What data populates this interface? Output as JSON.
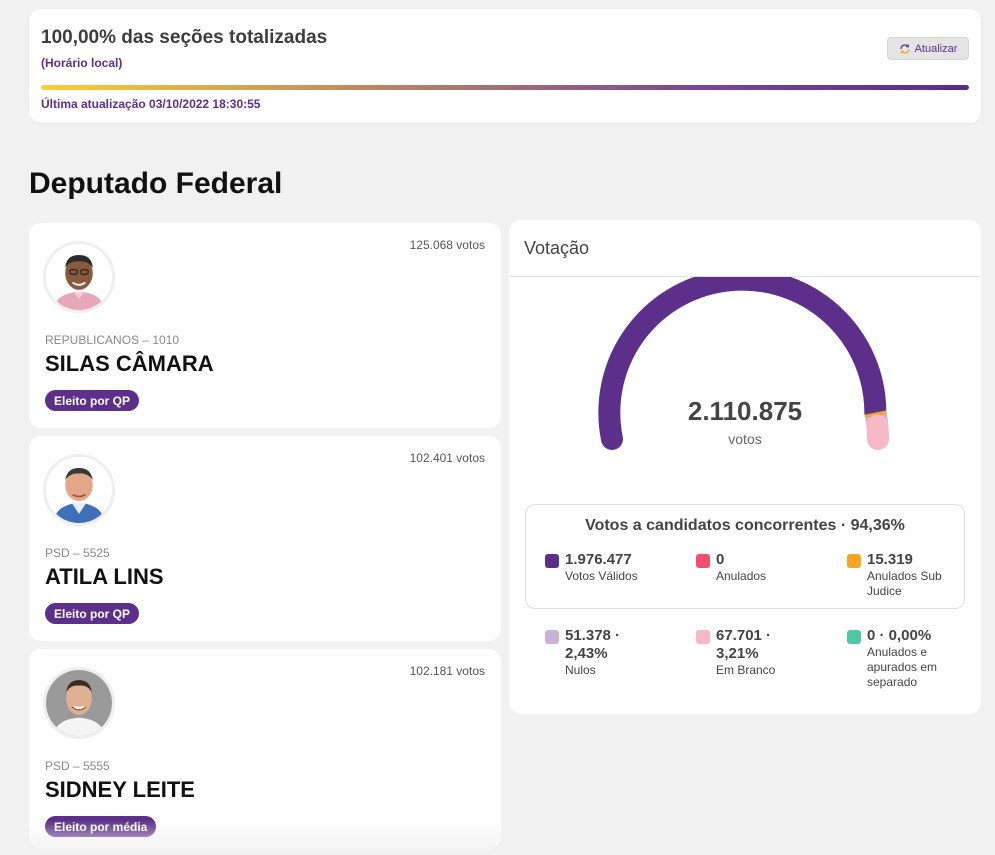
{
  "status": {
    "title": "100,00% das seções totalizadas",
    "subtitle": "(Horário local)",
    "refresh_label": "Atualizar",
    "progress_percent": 100,
    "last_update": "Última atualização 03/10/2022 18:30:55"
  },
  "section_title": "Deputado Federal",
  "candidates": [
    {
      "votes": "125.068 votos",
      "party": "REPUBLICANOS – 1010",
      "name": "SILAS CÂMARA",
      "badge": "Eleito por QP"
    },
    {
      "votes": "102.401 votos",
      "party": "PSD – 5525",
      "name": "ATILA LINS",
      "badge": "Eleito por QP"
    },
    {
      "votes": "102.181 votos",
      "party": "PSD – 5555",
      "name": "SIDNEY LEITE",
      "badge": "Eleito por média"
    }
  ],
  "votacao": {
    "title": "Votação",
    "total": "2.110.875",
    "total_unit": "votos",
    "concorrentes_title": "Votos a candidatos concorrentes · 94,36%",
    "stats_in_box": [
      {
        "value": "1.976.477",
        "label": "Votos Válidos",
        "color": "#5b2f8a"
      },
      {
        "value": "0",
        "label": "Anulados",
        "color": "#f0506e"
      },
      {
        "value": "15.319",
        "label": "Anulados Sub Judice",
        "color": "#f5a623"
      }
    ],
    "stats_outside": [
      {
        "value": "51.378 · 2,43%",
        "label": "Nulos",
        "color": "#c8b4d8"
      },
      {
        "value": "67.701 · 3,21%",
        "label": "Em Branco",
        "color": "#f7b8c6"
      },
      {
        "value": "0 · 0,00%",
        "label": "Anulados e apurados em separado",
        "color": "#4cc9a0"
      }
    ],
    "gauge_fractions": {
      "validos": 0.9363,
      "sub_judice": 0.0073,
      "nulos": 0.0243,
      "branco": 0.0321
    }
  }
}
